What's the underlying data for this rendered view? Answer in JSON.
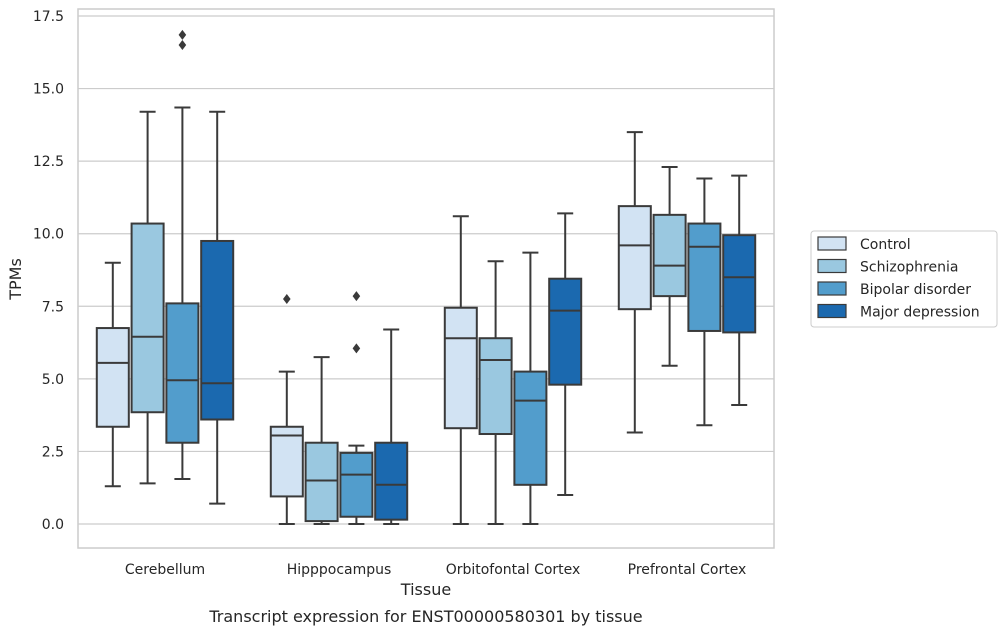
{
  "chart_data": {
    "type": "box",
    "title": "Transcript expression for ENST00000580301 by tissue",
    "xlabel": "Tissue",
    "ylabel": "TPMs",
    "ylim": [
      -0.8,
      17.6
    ],
    "yticks": [
      0.0,
      2.5,
      5.0,
      7.5,
      10.0,
      12.5,
      15.0,
      17.5
    ],
    "ytick_labels": [
      "0.0",
      "2.5",
      "5.0",
      "7.5",
      "10.0",
      "12.5",
      "15.0",
      "17.5"
    ],
    "grid": "horizontal",
    "legend_position": "right",
    "categories": [
      "Cerebellum",
      "Hipppocampus",
      "Orbitofontal Cortex",
      "Prefrontal Cortex"
    ],
    "series": [
      {
        "name": "Control",
        "color": "#d2e3f3",
        "boxes": [
          {
            "min": 1.3,
            "q1": 3.35,
            "median": 5.55,
            "q3": 6.75,
            "max": 9.0,
            "outliers": []
          },
          {
            "min": 0.0,
            "q1": 0.95,
            "median": 3.05,
            "q3": 3.35,
            "max": 5.25,
            "outliers": [
              7.75
            ]
          },
          {
            "min": 0.0,
            "q1": 3.3,
            "median": 6.4,
            "q3": 7.45,
            "max": 10.6,
            "outliers": []
          },
          {
            "min": 3.15,
            "q1": 7.4,
            "median": 9.6,
            "q3": 10.95,
            "max": 13.5,
            "outliers": []
          }
        ]
      },
      {
        "name": "Schizophrenia",
        "color": "#9ac8e0",
        "boxes": [
          {
            "min": 1.4,
            "q1": 3.85,
            "median": 6.45,
            "q3": 10.35,
            "max": 14.2,
            "outliers": []
          },
          {
            "min": 0.0,
            "q1": 0.1,
            "median": 1.5,
            "q3": 2.8,
            "max": 5.75,
            "outliers": []
          },
          {
            "min": 0.0,
            "q1": 3.1,
            "median": 5.65,
            "q3": 6.4,
            "max": 9.05,
            "outliers": []
          },
          {
            "min": 5.45,
            "q1": 7.85,
            "median": 8.9,
            "q3": 10.65,
            "max": 12.3,
            "outliers": []
          }
        ]
      },
      {
        "name": "Bipolar disorder",
        "color": "#529dcc",
        "boxes": [
          {
            "min": 1.55,
            "q1": 2.8,
            "median": 4.95,
            "q3": 7.6,
            "max": 14.35,
            "outliers": [
              16.5,
              16.85
            ]
          },
          {
            "min": 0.0,
            "q1": 0.25,
            "median": 1.7,
            "q3": 2.45,
            "max": 2.7,
            "outliers": [
              6.05,
              7.85
            ]
          },
          {
            "min": 0.0,
            "q1": 1.35,
            "median": 4.25,
            "q3": 5.25,
            "max": 9.35,
            "outliers": []
          },
          {
            "min": 3.4,
            "q1": 6.65,
            "median": 9.55,
            "q3": 10.35,
            "max": 11.9,
            "outliers": []
          }
        ]
      },
      {
        "name": "Major depression",
        "color": "#1b69af",
        "boxes": [
          {
            "min": 0.7,
            "q1": 3.6,
            "median": 4.85,
            "q3": 9.75,
            "max": 14.2,
            "outliers": []
          },
          {
            "min": 0.0,
            "q1": 0.15,
            "median": 1.35,
            "q3": 2.8,
            "max": 6.7,
            "outliers": []
          },
          {
            "min": 1.0,
            "q1": 4.8,
            "median": 7.35,
            "q3": 8.45,
            "max": 10.7,
            "outliers": []
          },
          {
            "min": 4.1,
            "q1": 6.6,
            "median": 8.5,
            "q3": 9.95,
            "max": 12.0,
            "outliers": []
          }
        ]
      }
    ]
  }
}
